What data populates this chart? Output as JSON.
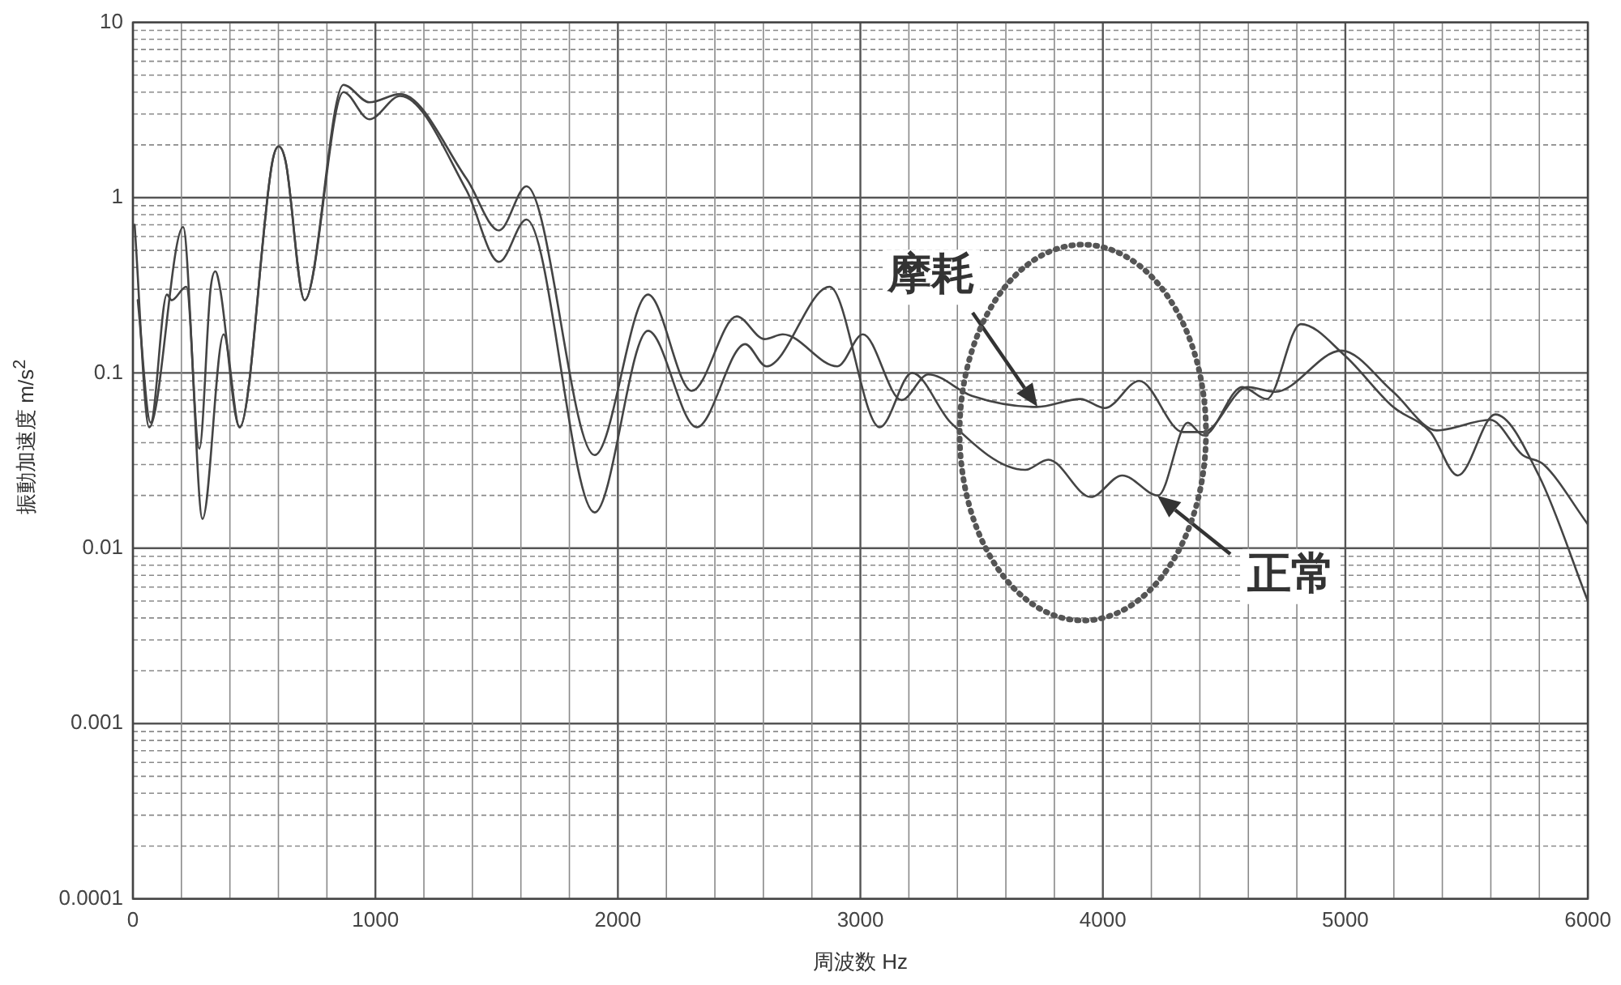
{
  "chart_data": {
    "type": "line",
    "xlabel": "周波数 Hz",
    "ylabel": "振動加速度 m/s$^{2}$",
    "log": "y",
    "grid": true,
    "marker": "none",
    "line_style": "solid",
    "xlim": [
      0,
      6000
    ],
    "xticks": [
      0,
      {
        "value": 200,
        "label": null
      },
      {
        "value": 400,
        "label": null
      },
      {
        "value": 600,
        "label": null
      },
      {
        "value": 800,
        "label": null
      },
      1000,
      {
        "value": 1200,
        "label": null
      },
      {
        "value": 1400,
        "label": null
      },
      {
        "value": 1600,
        "label": null
      },
      {
        "value": 1800,
        "label": null
      },
      2000,
      {
        "value": 2200,
        "label": null
      },
      {
        "value": 2400,
        "label": null
      },
      {
        "value": 2600,
        "label": null
      },
      {
        "value": 2800,
        "label": null
      },
      3000,
      {
        "value": 3200,
        "label": null
      },
      {
        "value": 3400,
        "label": null
      },
      {
        "value": 3600,
        "label": null
      },
      {
        "value": 3800,
        "label": null
      },
      4000,
      {
        "value": 4200,
        "label": null
      },
      {
        "value": 4400,
        "label": null
      },
      {
        "value": 4600,
        "label": null
      },
      {
        "value": 4800,
        "label": null
      },
      5000,
      {
        "value": 5200,
        "label": null
      },
      {
        "value": 5400,
        "label": null
      },
      {
        "value": 5600,
        "label": null
      },
      {
        "value": 5800,
        "label": null
      },
      6000
    ],
    "ylim": [
      0.0001,
      10
    ],
    "yticks": [
      0.0001,
      {
        "value": 0.0002,
        "label": null
      },
      {
        "value": 0.0003,
        "label": null
      },
      {
        "value": 0.0004,
        "label": null
      },
      {
        "value": 0.0005,
        "label": null
      },
      {
        "value": 0.0006,
        "label": null
      },
      {
        "value": 0.0007,
        "label": null
      },
      {
        "value": 0.0008,
        "label": null
      },
      {
        "value": 0.0009,
        "label": null
      },
      0.001,
      {
        "value": 0.002,
        "label": null
      },
      {
        "value": 0.003,
        "label": null
      },
      {
        "value": 0.004,
        "label": null
      },
      {
        "value": 0.005,
        "label": null
      },
      {
        "value": 0.006,
        "label": null
      },
      {
        "value": 0.007,
        "label": null
      },
      {
        "value": 0.008,
        "label": null
      },
      {
        "value": 0.009,
        "label": null
      },
      0.01,
      {
        "value": 0.02,
        "label": null
      },
      {
        "value": 0.03,
        "label": null
      },
      {
        "value": 0.04,
        "label": null
      },
      {
        "value": 0.05,
        "label": null
      },
      {
        "value": 0.06,
        "label": null
      },
      {
        "value": 0.07,
        "label": null
      },
      {
        "value": 0.08,
        "label": null
      },
      {
        "value": 0.09,
        "label": null
      },
      0.1,
      {
        "value": 0.2,
        "label": null
      },
      {
        "value": 0.3,
        "label": null
      },
      {
        "value": 0.4,
        "label": null
      },
      {
        "value": 0.5,
        "label": null
      },
      {
        "value": 0.6,
        "label": null
      },
      {
        "value": 0.7,
        "label": null
      },
      {
        "value": 0.8,
        "label": null
      },
      {
        "value": 0.9,
        "label": null
      },
      1,
      {
        "value": 2,
        "label": null
      },
      {
        "value": 3,
        "label": null
      },
      {
        "value": 4,
        "label": null
      },
      {
        "value": 5,
        "label": null
      },
      {
        "value": 6,
        "label": null
      },
      {
        "value": 7,
        "label": null
      },
      {
        "value": 8,
        "label": null
      },
      {
        "value": 9,
        "label": null
      },
      10
    ],
    "series": [
      {
        "color": "#444444",
        "x": [
          7,
          67,
          207,
          274,
          320,
          340,
          360,
          440,
          575,
          601,
          630,
          708,
          868,
          975,
          1102,
          1376,
          1510,
          1623,
          1904,
          2124,
          2305,
          2490,
          2605,
          2680,
          2905,
          3010,
          3170,
          3280,
          3460,
          3727,
          3907,
          4008,
          4150,
          4330,
          4415,
          4596,
          4710,
          4983,
          5197,
          5377,
          5598,
          5731,
          5818,
          6000
        ],
        "values": [
          0.7,
          0.049,
          0.68,
          0.037,
          0.3,
          0.38,
          0.3,
          0.049,
          1.6,
          1.96,
          1.6,
          0.26,
          4.4,
          3.5,
          3.9,
          1.28,
          0.65,
          1.16,
          0.034,
          0.28,
          0.079,
          0.21,
          0.156,
          0.166,
          0.109,
          0.166,
          0.07,
          0.098,
          0.074,
          0.064,
          0.071,
          0.063,
          0.09,
          0.046,
          0.046,
          0.083,
          0.078,
          0.134,
          0.078,
          0.047,
          0.054,
          0.034,
          0.03,
          0.0137
        ]
      },
      {
        "color": "#444444",
        "x": [
          20,
          73,
          140,
          160,
          220,
          287,
          374,
          440,
          575,
          601,
          630,
          708,
          868,
          975,
          1102,
          1376,
          1510,
          1623,
          1904,
          2124,
          2325,
          2525,
          2612,
          2873,
          3080,
          3213,
          3373,
          3680,
          3775,
          3950,
          4080,
          4228,
          4350,
          4415,
          4575,
          4676,
          4816,
          4997,
          5197,
          5351,
          5464,
          5618,
          5798,
          6000
        ],
        "values": [
          0.26,
          0.052,
          0.28,
          0.26,
          0.31,
          0.0147,
          0.166,
          0.049,
          1.6,
          1.96,
          1.6,
          0.26,
          4.0,
          2.8,
          3.8,
          1.1,
          0.43,
          0.75,
          0.016,
          0.174,
          0.049,
          0.146,
          0.109,
          0.31,
          0.049,
          0.1,
          0.052,
          0.028,
          0.032,
          0.0196,
          0.026,
          0.02,
          0.052,
          0.044,
          0.083,
          0.071,
          0.19,
          0.126,
          0.064,
          0.046,
          0.026,
          0.058,
          0.026,
          0.005
        ]
      }
    ],
    "annotations": [
      {
        "text": "摩耗",
        "x": 3727,
        "y": 0.064
      },
      {
        "text": "正常",
        "x": 4228,
        "y": 0.02
      }
    ]
  }
}
